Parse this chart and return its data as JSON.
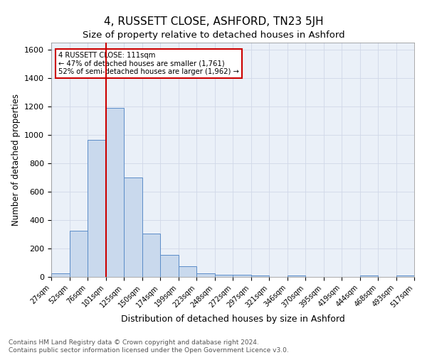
{
  "title": "4, RUSSETT CLOSE, ASHFORD, TN23 5JH",
  "subtitle": "Size of property relative to detached houses in Ashford",
  "xlabel": "Distribution of detached houses by size in Ashford",
  "ylabel": "Number of detached properties",
  "bar_values": [
    25,
    325,
    965,
    1190,
    700,
    305,
    155,
    75,
    25,
    15,
    15,
    12,
    0,
    12,
    0,
    0,
    0,
    12,
    0,
    12
  ],
  "bin_labels": [
    "27sqm",
    "52sqm",
    "76sqm",
    "101sqm",
    "125sqm",
    "150sqm",
    "174sqm",
    "199sqm",
    "223sqm",
    "248sqm",
    "272sqm",
    "297sqm",
    "321sqm",
    "346sqm",
    "370sqm",
    "395sqm",
    "419sqm",
    "444sqm",
    "468sqm",
    "493sqm",
    "517sqm"
  ],
  "bar_color": "#c9d9ed",
  "bar_edge_color": "#5b8cc8",
  "grid_color": "#d0d8e8",
  "background_color": "#eaf0f8",
  "vline_color": "#cc0000",
  "annotation_text": "4 RUSSETT CLOSE: 111sqm\n← 47% of detached houses are smaller (1,761)\n52% of semi-detached houses are larger (1,962) →",
  "annotation_box_color": "#ffffff",
  "annotation_box_edge": "#cc0000",
  "ylim": [
    0,
    1650
  ],
  "yticks": [
    0,
    200,
    400,
    600,
    800,
    1000,
    1200,
    1400,
    1600
  ],
  "footer_text": "Contains HM Land Registry data © Crown copyright and database right 2024.\nContains public sector information licensed under the Open Government Licence v3.0.",
  "title_fontsize": 11,
  "subtitle_fontsize": 9.5,
  "xlabel_fontsize": 9,
  "ylabel_fontsize": 8.5,
  "footer_fontsize": 6.5,
  "tick_fontsize": 7,
  "ytick_fontsize": 8
}
